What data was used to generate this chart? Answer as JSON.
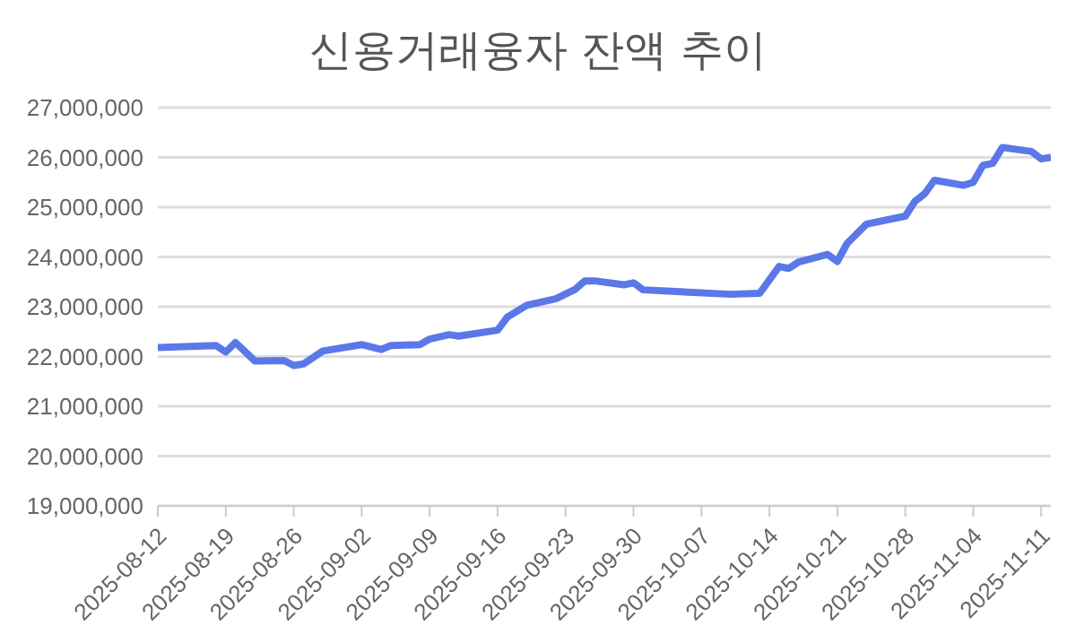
{
  "chart_data": {
    "type": "line",
    "title": "신용거래융자 잔액 추이",
    "x": [
      "2025-08-12",
      "2025-08-18",
      "2025-08-19",
      "2025-08-20",
      "2025-08-22",
      "2025-08-25",
      "2025-08-26",
      "2025-08-27",
      "2025-08-29",
      "2025-09-02",
      "2025-09-04",
      "2025-09-05",
      "2025-09-08",
      "2025-09-09",
      "2025-09-11",
      "2025-09-12",
      "2025-09-16",
      "2025-09-17",
      "2025-09-19",
      "2025-09-22",
      "2025-09-24",
      "2025-09-25",
      "2025-09-26",
      "2025-09-29",
      "2025-09-30",
      "2025-10-01",
      "2025-10-10",
      "2025-10-13",
      "2025-10-15",
      "2025-10-16",
      "2025-10-17",
      "2025-10-20",
      "2025-10-21",
      "2025-10-22",
      "2025-10-24",
      "2025-10-28",
      "2025-10-29",
      "2025-10-30",
      "2025-10-31",
      "2025-11-03",
      "2025-11-04",
      "2025-11-05",
      "2025-11-06",
      "2025-11-07",
      "2025-11-10",
      "2025-11-11",
      "2025-11-12"
    ],
    "series": [
      {
        "color": "#5b78e8",
        "values": [
          22180000,
          22220000,
          22090000,
          22280000,
          21910000,
          21920000,
          21820000,
          21850000,
          22110000,
          22240000,
          22140000,
          22220000,
          22240000,
          22350000,
          22440000,
          22410000,
          22530000,
          22790000,
          23030000,
          23160000,
          23350000,
          23520000,
          23520000,
          23440000,
          23480000,
          23340000,
          23250000,
          23270000,
          23810000,
          23770000,
          23900000,
          24050000,
          23910000,
          24270000,
          24660000,
          24820000,
          25120000,
          25270000,
          25540000,
          25440000,
          25500000,
          25840000,
          25880000,
          26200000,
          26120000,
          25970000,
          26000000
        ]
      }
    ],
    "xlim": [
      "2025-08-12",
      "2025-11-12"
    ],
    "xticks": [
      "2025-08-12",
      "2025-08-19",
      "2025-08-26",
      "2025-09-02",
      "2025-09-09",
      "2025-09-16",
      "2025-09-23",
      "2025-09-30",
      "2025-10-07",
      "2025-10-14",
      "2025-10-21",
      "2025-10-28",
      "2025-11-04",
      "2025-11-11"
    ],
    "ylim": [
      19000000,
      27000000
    ],
    "yticks": [
      {
        "value": 19000000,
        "label": "19,000,000"
      },
      {
        "value": 20000000,
        "label": "20,000,000"
      },
      {
        "value": 21000000,
        "label": "21,000,000"
      },
      {
        "value": 22000000,
        "label": "22,000,000"
      },
      {
        "value": 23000000,
        "label": "23,000,000"
      },
      {
        "value": 24000000,
        "label": "24,000,000"
      },
      {
        "value": 25000000,
        "label": "25,000,000"
      },
      {
        "value": 26000000,
        "label": "26,000,000"
      },
      {
        "value": 27000000,
        "label": "27,000,000"
      }
    ],
    "grid": "y",
    "legend": false,
    "marker": "none",
    "line_style": "solid"
  }
}
